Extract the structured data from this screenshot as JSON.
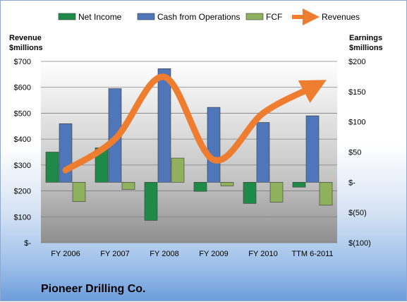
{
  "chart_data": {
    "type": "bar",
    "categories": [
      "FY 2006",
      "FY 2007",
      "FY 2008",
      "FY 2009",
      "FY 2010",
      "TTM 6-2011"
    ],
    "series": [
      {
        "name": "Net Income",
        "axis": "right",
        "color": "#1e8a48",
        "values": [
          50,
          57,
          -63,
          -15,
          -35,
          -8
        ]
      },
      {
        "name": "Cash from Operations",
        "axis": "right",
        "color": "#4e76b8",
        "values": [
          97,
          155,
          188,
          124,
          99,
          110
        ]
      },
      {
        "name": "FCF",
        "axis": "right",
        "color": "#8fb05c",
        "values": [
          -32,
          -12,
          40,
          -6,
          -33,
          -38
        ]
      },
      {
        "name": "Revenues",
        "axis": "left",
        "type": "line",
        "color": "#ee7d30",
        "values": [
          280,
          400,
          640,
          320,
          500,
          600
        ]
      }
    ],
    "left_axis": {
      "label_line1": "Revenue",
      "label_line2": "$millions",
      "min": 0,
      "max": 700,
      "step": 100,
      "ticks": [
        "$-",
        "$100",
        "$200",
        "$300",
        "$400",
        "$500",
        "$600",
        "$700"
      ]
    },
    "right_axis": {
      "label_line1": "Earnings",
      "label_line2": "$millions",
      "min": -100,
      "max": 200,
      "step": 50,
      "ticks": [
        "$(100)",
        "$(50)",
        "$-",
        "$50",
        "$100",
        "$150",
        "$200"
      ]
    },
    "legend_position": "top",
    "grid": true,
    "company_name": "Pioneer Drilling Co."
  }
}
